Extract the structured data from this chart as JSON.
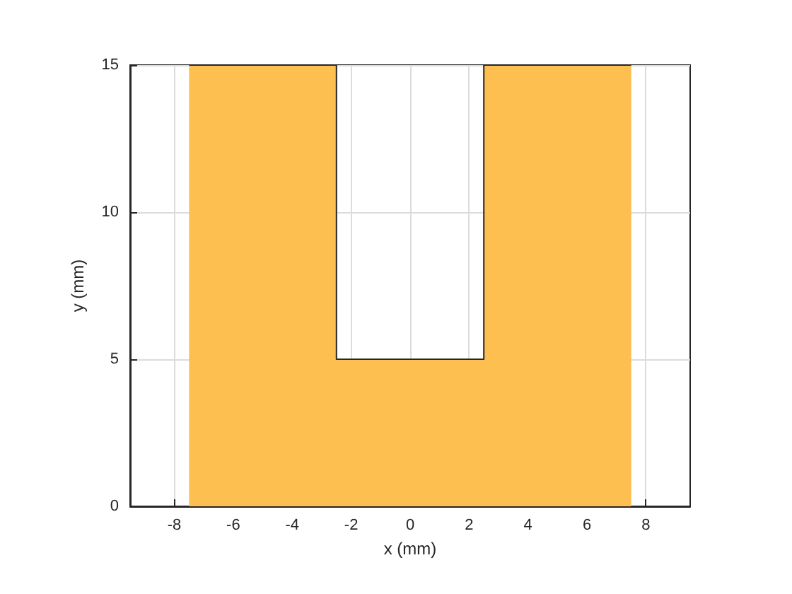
{
  "chart_data": {
    "type": "area",
    "xlabel": "x (mm)",
    "ylabel": "y (mm)",
    "x": [
      -7.5,
      -2.5,
      -2.5,
      2.5,
      2.5,
      7.5
    ],
    "series": [
      {
        "color": "#fdbf50",
        "values": [
          15,
          15,
          5,
          5,
          15,
          15
        ]
      }
    ],
    "xlim": [
      -9.5,
      9.5
    ],
    "ylim": [
      0,
      15
    ],
    "xticks": [
      -8,
      -6,
      -4,
      -2,
      0,
      2,
      4,
      6,
      8
    ],
    "yticks": [
      0,
      5,
      10,
      15
    ],
    "grid": true,
    "marker": "none"
  }
}
